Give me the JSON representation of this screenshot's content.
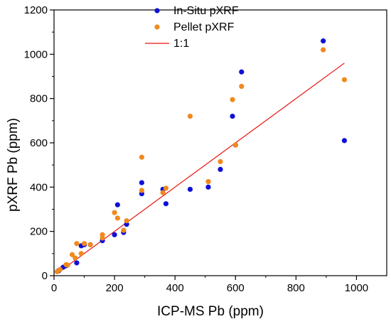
{
  "chart_data": {
    "type": "scatter",
    "title": "",
    "xlabel": "ICP-MS Pb (ppm)",
    "ylabel": "pXRF Pb (ppm)",
    "xlim": [
      0,
      1100
    ],
    "ylim": [
      0,
      1200
    ],
    "xticks": [
      "0",
      "200",
      "400",
      "600",
      "800",
      "1000"
    ],
    "yticks": [
      "0",
      "200",
      "400",
      "600",
      "800",
      "1000",
      "1200"
    ],
    "grid": false,
    "legend_position": "top-center",
    "series": [
      {
        "name": "In-Situ pXRF",
        "color": "#1010d8",
        "marker": "circle",
        "points": [
          [
            15,
            22
          ],
          [
            30,
            38
          ],
          [
            40,
            45
          ],
          [
            75,
            58
          ],
          [
            90,
            135
          ],
          [
            100,
            140
          ],
          [
            120,
            140
          ],
          [
            160,
            158
          ],
          [
            200,
            185
          ],
          [
            210,
            320
          ],
          [
            230,
            195
          ],
          [
            240,
            232
          ],
          [
            290,
            370
          ],
          [
            290,
            420
          ],
          [
            360,
            390
          ],
          [
            370,
            325
          ],
          [
            450,
            390
          ],
          [
            510,
            400
          ],
          [
            550,
            480
          ],
          [
            590,
            720
          ],
          [
            600,
            590
          ],
          [
            620,
            920
          ],
          [
            890,
            1060
          ],
          [
            960,
            610
          ]
        ]
      },
      {
        "name": "Pellet pXRF",
        "color": "#f0891e",
        "marker": "circle",
        "points": [
          [
            10,
            18
          ],
          [
            20,
            28
          ],
          [
            40,
            50
          ],
          [
            45,
            48
          ],
          [
            60,
            95
          ],
          [
            70,
            80
          ],
          [
            75,
            145
          ],
          [
            90,
            100
          ],
          [
            100,
            145
          ],
          [
            120,
            140
          ],
          [
            160,
            170
          ],
          [
            160,
            185
          ],
          [
            200,
            285
          ],
          [
            210,
            260
          ],
          [
            230,
            205
          ],
          [
            240,
            248
          ],
          [
            290,
            535
          ],
          [
            290,
            385
          ],
          [
            360,
            375
          ],
          [
            370,
            395
          ],
          [
            450,
            720
          ],
          [
            510,
            425
          ],
          [
            550,
            515
          ],
          [
            590,
            795
          ],
          [
            600,
            590
          ],
          [
            620,
            855
          ],
          [
            890,
            1020
          ],
          [
            960,
            885
          ]
        ]
      },
      {
        "name": "1:1",
        "type": "line",
        "color": "#e8140f",
        "points": [
          [
            10,
            10
          ],
          [
            960,
            960
          ]
        ]
      }
    ]
  }
}
